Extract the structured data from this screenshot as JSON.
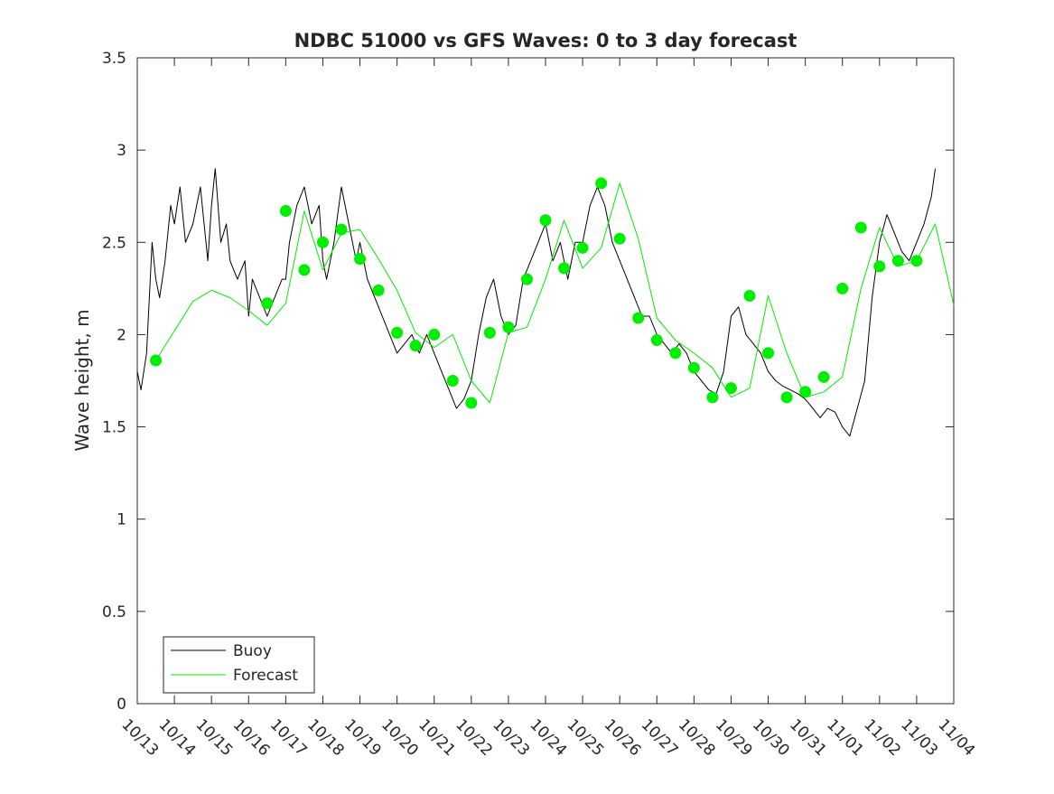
{
  "chart_data": {
    "type": "line",
    "title": "NDBC 51000 vs GFS Waves: 0 to 3 day forecast",
    "xlabel": "",
    "ylabel": "Wave height, m",
    "x_range": [
      "10/13",
      "11/04"
    ],
    "ylim": [
      0,
      3.5
    ],
    "yticks": [
      "0",
      "0.5",
      "1",
      "1.5",
      "2",
      "2.5",
      "3",
      "3.5"
    ],
    "xticks": [
      "10/13",
      "10/14",
      "10/15",
      "10/16",
      "10/17",
      "10/18",
      "10/19",
      "10/20",
      "10/21",
      "10/22",
      "10/23",
      "10/24",
      "10/25",
      "10/26",
      "10/27",
      "10/28",
      "10/29",
      "10/30",
      "10/31",
      "11/01",
      "11/02",
      "11/03",
      "11/04"
    ],
    "grid": false,
    "legend": {
      "placement": "bottom-left",
      "entries": [
        "Buoy",
        "Forecast"
      ]
    },
    "colors": {
      "buoy": "#000000",
      "forecast": "#00ee00",
      "axes": "#262626"
    },
    "series": [
      {
        "name": "Buoy",
        "style": "line",
        "x_day": [
          0,
          0.1,
          0.25,
          0.4,
          0.5,
          0.6,
          0.75,
          0.9,
          1.0,
          1.15,
          1.3,
          1.5,
          1.7,
          1.8,
          1.9,
          2.0,
          2.1,
          2.25,
          2.4,
          2.5,
          2.7,
          2.9,
          3.0,
          3.1,
          3.3,
          3.5,
          3.7,
          3.9,
          4.0,
          4.1,
          4.3,
          4.5,
          4.7,
          4.9,
          5.0,
          5.1,
          5.3,
          5.5,
          5.7,
          5.9,
          6.0,
          6.2,
          6.4,
          6.6,
          6.8,
          7.0,
          7.2,
          7.4,
          7.6,
          7.8,
          8.0,
          8.2,
          8.4,
          8.6,
          8.8,
          9.0,
          9.2,
          9.4,
          9.6,
          9.8,
          10.0,
          10.2,
          10.4,
          10.6,
          10.8,
          11.0,
          11.2,
          11.4,
          11.6,
          11.8,
          12.0,
          12.2,
          12.4,
          12.6,
          12.8,
          13.0,
          13.2,
          13.4,
          13.6,
          13.8,
          14.0,
          14.2,
          14.4,
          14.6,
          14.8,
          15.0,
          15.2,
          15.4,
          15.6,
          15.8,
          16.0,
          16.2,
          16.4,
          16.6,
          16.8,
          17.0,
          17.2,
          17.4,
          17.6,
          17.8,
          18.0,
          18.2,
          18.4,
          18.6,
          18.8,
          19.0,
          19.2,
          19.4,
          19.6,
          19.8,
          20.0,
          20.2,
          20.4,
          20.6,
          20.8,
          21.0,
          21.2,
          21.4,
          21.5
        ],
        "y": [
          1.8,
          1.7,
          1.9,
          2.5,
          2.3,
          2.2,
          2.4,
          2.7,
          2.6,
          2.8,
          2.5,
          2.6,
          2.8,
          2.6,
          2.4,
          2.7,
          2.9,
          2.5,
          2.6,
          2.4,
          2.3,
          2.4,
          2.1,
          2.3,
          2.2,
          2.1,
          2.2,
          2.3,
          2.3,
          2.5,
          2.7,
          2.8,
          2.6,
          2.7,
          2.4,
          2.3,
          2.5,
          2.8,
          2.6,
          2.4,
          2.5,
          2.3,
          2.2,
          2.1,
          2.0,
          1.9,
          1.95,
          2.0,
          1.9,
          2.0,
          1.9,
          1.8,
          1.7,
          1.6,
          1.65,
          1.75,
          2.0,
          2.2,
          2.3,
          2.1,
          2.0,
          2.05,
          2.3,
          2.4,
          2.5,
          2.6,
          2.4,
          2.5,
          2.3,
          2.5,
          2.5,
          2.7,
          2.8,
          2.7,
          2.5,
          2.4,
          2.3,
          2.2,
          2.1,
          2.1,
          2.0,
          1.95,
          1.9,
          1.95,
          1.9,
          1.8,
          1.75,
          1.7,
          1.68,
          1.8,
          2.1,
          2.15,
          2.0,
          1.95,
          1.9,
          1.8,
          1.75,
          1.72,
          1.7,
          1.68,
          1.65,
          1.6,
          1.55,
          1.6,
          1.58,
          1.5,
          1.45,
          1.6,
          1.75,
          2.2,
          2.5,
          2.65,
          2.55,
          2.45,
          2.4,
          2.5,
          2.6,
          2.75,
          2.9
        ]
      },
      {
        "name": "Forecast",
        "style": "line",
        "x_day": [
          0.5,
          1.0,
          1.5,
          2.0,
          2.5,
          3.0,
          3.5,
          4.0,
          4.5,
          5.0,
          5.5,
          6.0,
          6.5,
          7.0,
          7.5,
          8.0,
          8.5,
          9.0,
          9.5,
          10.0,
          10.5,
          11.0,
          11.5,
          12.0,
          12.5,
          13.0,
          13.5,
          14.0,
          14.5,
          15.0,
          15.5,
          16.0,
          16.5,
          17.0,
          17.5,
          18.0,
          18.5,
          19.0,
          19.5,
          20.0,
          20.5,
          21.0,
          21.5,
          22.0
        ],
        "y": [
          1.86,
          2.02,
          2.18,
          2.24,
          2.2,
          2.13,
          2.05,
          2.17,
          2.67,
          2.35,
          2.55,
          2.57,
          2.41,
          2.24,
          2.01,
          1.93,
          2.0,
          1.75,
          1.63,
          2.01,
          2.04,
          2.3,
          2.62,
          2.36,
          2.47,
          2.82,
          2.52,
          2.09,
          1.97,
          1.9,
          1.82,
          1.66,
          1.71,
          2.21,
          1.9,
          1.66,
          1.69,
          1.77,
          2.25,
          2.58,
          2.37,
          2.4,
          2.6,
          2.16
        ]
      },
      {
        "name": "",
        "style": "markers",
        "x_day": [
          0.5,
          3.5,
          4.0,
          4.5,
          5.0,
          5.5,
          6.0,
          6.5,
          7.0,
          7.5,
          8.0,
          8.5,
          9.0,
          9.5,
          10.0,
          10.5,
          11.0,
          11.5,
          12.0,
          12.5,
          13.0,
          13.5,
          14.0,
          14.5,
          15.0,
          15.5,
          16.0,
          16.5,
          17.0,
          17.5,
          18.0,
          18.5,
          19.0,
          19.5,
          20.0,
          20.5,
          21.0
        ],
        "y": [
          1.86,
          2.17,
          2.67,
          2.35,
          2.5,
          2.57,
          2.41,
          2.24,
          2.01,
          1.94,
          2.0,
          1.75,
          1.63,
          2.01,
          2.04,
          2.3,
          2.62,
          2.36,
          2.47,
          2.82,
          2.52,
          2.09,
          1.97,
          1.9,
          1.82,
          1.66,
          1.71,
          2.21,
          1.9,
          1.66,
          1.69,
          1.77,
          2.25,
          2.58,
          2.37,
          2.4,
          2.4
        ]
      }
    ]
  }
}
